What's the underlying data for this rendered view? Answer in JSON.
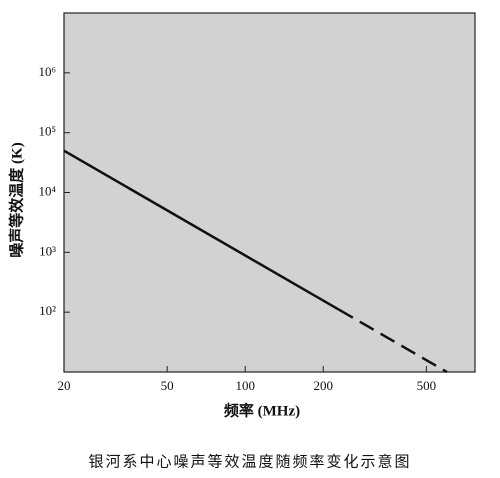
{
  "chart_data": {
    "type": "line",
    "caption": "银河系中心噪声等效温度随频率变化示意图",
    "xlabel": "频率 (MHz)",
    "ylabel": "噪声等效温度 (K)",
    "xscale": "log",
    "yscale": "log",
    "xlim": [
      20,
      770
    ],
    "ylim": [
      10,
      10000000
    ],
    "xticks": [
      20,
      50,
      100,
      200,
      500
    ],
    "yticks": [
      {
        "value": 100,
        "label": "10²"
      },
      {
        "value": 1000,
        "label": "10³"
      },
      {
        "value": 10000,
        "label": "10⁴"
      },
      {
        "value": 100000,
        "label": "10⁵"
      },
      {
        "value": 1000000,
        "label": "10⁶"
      }
    ],
    "series": [
      {
        "style": "solid",
        "color": "#111111",
        "x": [
          20,
          230
        ],
        "values": [
          50000,
          110
        ]
      },
      {
        "style": "dashed",
        "color": "#111111",
        "x": [
          230,
          600
        ],
        "values": [
          110,
          10
        ]
      }
    ]
  }
}
